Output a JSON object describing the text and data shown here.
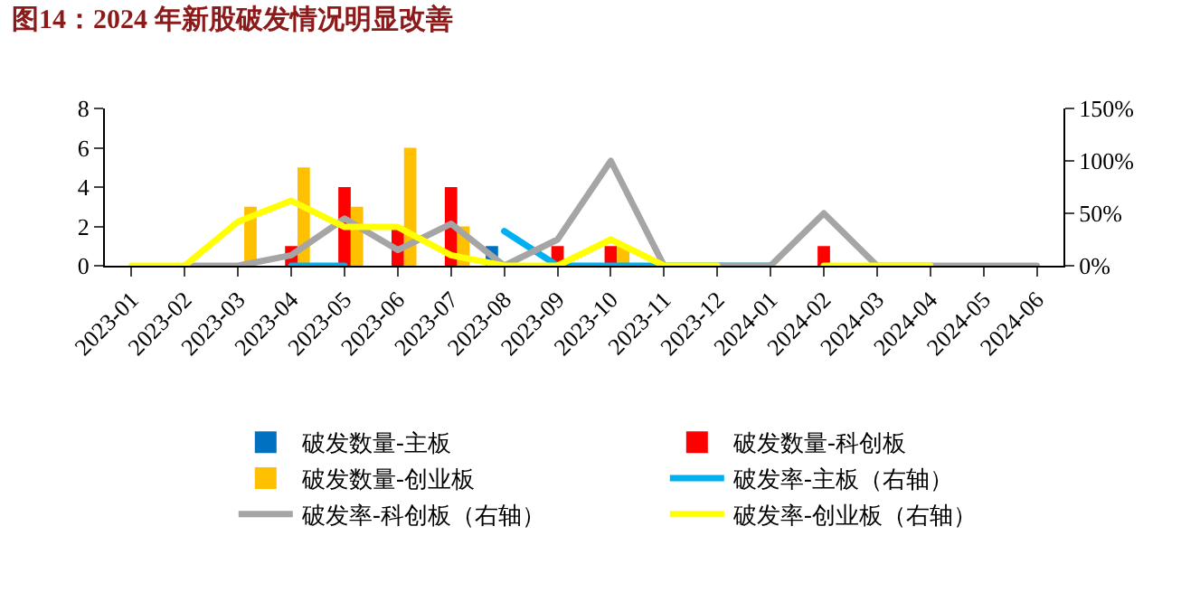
{
  "chart_data": {
    "type": "bar",
    "title": "图14：2024 年新股破发情况明显改善",
    "categories": [
      "2023-01",
      "2023-02",
      "2023-03",
      "2023-04",
      "2023-05",
      "2023-06",
      "2023-07",
      "2023-08",
      "2023-09",
      "2023-10",
      "2023-11",
      "2023-12",
      "2024-01",
      "2024-02",
      "2024-03",
      "2024-04",
      "2024-05",
      "2024-06"
    ],
    "series": [
      {
        "name": "破发数量-主板",
        "color": "#0070c0",
        "values": [
          null,
          null,
          null,
          null,
          null,
          null,
          null,
          1,
          null,
          null,
          null,
          null,
          null,
          null,
          null,
          null,
          null,
          null
        ]
      },
      {
        "name": "破发数量-科创板",
        "color": "#ff0000",
        "values": [
          null,
          null,
          null,
          1,
          4,
          2,
          4,
          null,
          1,
          1,
          null,
          null,
          null,
          1,
          null,
          null,
          null,
          null
        ]
      },
      {
        "name": "破发数量-创业板",
        "color": "#ffc000",
        "values": [
          null,
          null,
          3,
          5,
          3,
          6,
          2,
          null,
          null,
          1,
          null,
          null,
          null,
          null,
          null,
          null,
          null,
          null
        ]
      },
      {
        "name": "破发率-主板（右轴）",
        "type": "line",
        "axis": "y2",
        "color": "#00b0f0",
        "values": [
          null,
          null,
          null,
          0,
          0,
          null,
          null,
          33,
          0,
          0,
          0,
          0,
          0,
          null,
          null,
          null,
          null,
          null
        ]
      },
      {
        "name": "破发率-科创板（右轴）",
        "type": "line",
        "axis": "y2",
        "color": "#a5a5a5",
        "values": [
          null,
          0,
          0,
          10,
          45,
          15,
          40,
          0,
          25,
          100,
          0,
          0,
          0,
          50,
          0,
          0,
          0,
          0
        ]
      },
      {
        "name": "破发率-创业板（右轴）",
        "type": "line",
        "axis": "y2",
        "color": "#ffff00",
        "values": [
          0,
          0,
          42,
          62,
          37,
          37,
          10,
          0,
          0,
          25,
          0,
          0,
          null,
          0,
          0,
          0,
          null,
          null
        ]
      }
    ],
    "ylim": [
      0,
      8
    ],
    "yticks": [
      0,
      2,
      4,
      6,
      8
    ],
    "y2lim": [
      0,
      150
    ],
    "y2ticks": [
      {
        "value": 0,
        "label": "0%"
      },
      {
        "value": 50,
        "label": "50%"
      },
      {
        "value": 100,
        "label": "100%"
      },
      {
        "value": 150,
        "label": "150%"
      }
    ],
    "legend": "bottom",
    "marker": "none",
    "line_style": "solid"
  }
}
